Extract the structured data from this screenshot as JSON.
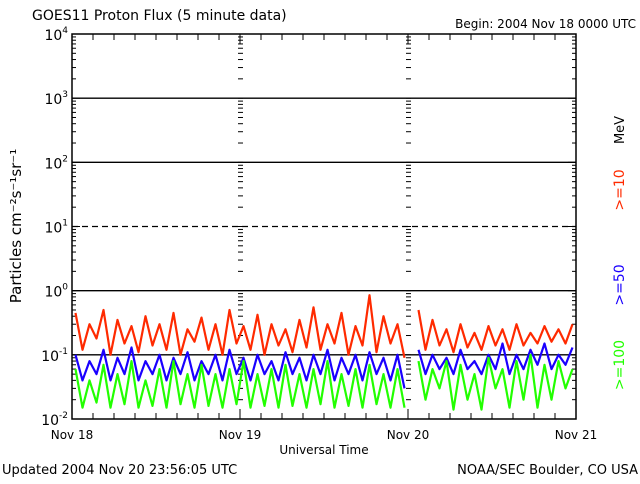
{
  "chart_data": {
    "type": "line",
    "title": "GOES11 Proton Flux (5 minute data)",
    "begin_label": "Begin: 2004 Nov 18 0000 UTC",
    "xlabel": "Universal Time",
    "ylabel": "Particles cm⁻²s⁻¹sr⁻¹",
    "yscale": "log",
    "ylim": [
      0.01,
      10000
    ],
    "y_ticks": [
      {
        "value": 10000,
        "base": "10",
        "exp": "4"
      },
      {
        "value": 1000,
        "base": "10",
        "exp": "3"
      },
      {
        "value": 100,
        "base": "10",
        "exp": "2"
      },
      {
        "value": 10,
        "base": "10",
        "exp": "1"
      },
      {
        "value": 1,
        "base": "10",
        "exp": "0"
      },
      {
        "value": 0.1,
        "base": "10",
        "exp": "-1"
      },
      {
        "value": 0.01,
        "base": "10",
        "exp": "-2"
      }
    ],
    "xlim_hours": [
      0,
      72
    ],
    "x_ticks": [
      {
        "hour": 0,
        "label": "Nov 18"
      },
      {
        "hour": 24,
        "label": "Nov 19"
      },
      {
        "hour": 48,
        "label": "Nov 20"
      },
      {
        "hour": 72,
        "label": "Nov 21"
      }
    ],
    "reference_lines": [
      {
        "value": 1000,
        "style": "solid"
      },
      {
        "value": 100,
        "style": "solid"
      },
      {
        "value": 10,
        "style": "dashed"
      },
      {
        "value": 1,
        "style": "solid"
      },
      {
        "value": 0.1,
        "style": "solid"
      }
    ],
    "unit_label": "MeV",
    "x_hours_step": 1,
    "series": [
      {
        "name": ">=10",
        "color": "#ff2a00",
        "values": [
          0.45,
          0.12,
          0.3,
          0.18,
          0.5,
          0.1,
          0.35,
          0.15,
          0.28,
          0.11,
          0.4,
          0.14,
          0.3,
          0.12,
          0.45,
          0.1,
          0.25,
          0.16,
          0.38,
          0.12,
          0.3,
          0.1,
          0.5,
          0.15,
          0.28,
          0.12,
          0.42,
          0.1,
          0.3,
          0.14,
          0.25,
          0.11,
          0.35,
          0.13,
          0.55,
          0.12,
          0.3,
          0.15,
          0.45,
          0.1,
          0.28,
          0.14,
          0.85,
          0.11,
          0.4,
          0.15,
          0.3,
          0.09,
          null,
          0.5,
          0.12,
          0.35,
          0.14,
          0.25,
          0.11,
          0.3,
          0.13,
          0.22,
          0.12,
          0.28,
          0.14,
          0.25,
          0.12,
          0.3,
          0.14,
          0.22,
          0.15,
          0.28,
          0.16,
          0.25,
          0.15,
          0.3
        ]
      },
      {
        "name": ">=50",
        "color": "#1a00ff",
        "values": [
          0.1,
          0.04,
          0.08,
          0.05,
          0.12,
          0.04,
          0.09,
          0.05,
          0.13,
          0.04,
          0.08,
          0.05,
          0.1,
          0.04,
          0.09,
          0.05,
          0.11,
          0.04,
          0.08,
          0.05,
          0.1,
          0.04,
          0.12,
          0.05,
          0.09,
          0.04,
          0.1,
          0.05,
          0.08,
          0.04,
          0.11,
          0.05,
          0.09,
          0.04,
          0.1,
          0.05,
          0.12,
          0.04,
          0.09,
          0.05,
          0.1,
          0.04,
          0.11,
          0.05,
          0.09,
          0.04,
          0.1,
          0.03,
          null,
          0.12,
          0.05,
          0.1,
          0.06,
          0.09,
          0.05,
          0.12,
          0.06,
          0.08,
          0.05,
          0.1,
          0.06,
          0.15,
          0.05,
          0.1,
          0.06,
          0.12,
          0.07,
          0.15,
          0.06,
          0.1,
          0.07,
          0.13
        ]
      },
      {
        "name": ">=100",
        "color": "#22ff00",
        "values": [
          0.06,
          0.015,
          0.04,
          0.018,
          0.07,
          0.015,
          0.05,
          0.017,
          0.08,
          0.015,
          0.04,
          0.016,
          0.06,
          0.015,
          0.08,
          0.017,
          0.05,
          0.015,
          0.07,
          0.016,
          0.05,
          0.015,
          0.06,
          0.017,
          0.08,
          0.015,
          0.05,
          0.016,
          0.06,
          0.015,
          0.07,
          0.016,
          0.05,
          0.015,
          0.06,
          0.017,
          0.08,
          0.015,
          0.05,
          0.016,
          0.06,
          0.015,
          0.07,
          0.017,
          0.05,
          0.015,
          0.06,
          0.015,
          null,
          0.08,
          0.02,
          0.06,
          0.03,
          0.08,
          0.014,
          0.07,
          0.02,
          0.05,
          0.014,
          0.09,
          0.03,
          0.06,
          0.015,
          0.08,
          0.02,
          0.1,
          0.015,
          0.07,
          0.02,
          0.08,
          0.03,
          0.06
        ]
      }
    ]
  },
  "footer": {
    "updated": "Updated 2004 Nov 20 23:56:05 UTC",
    "credit": "NOAA/SEC Boulder, CO USA"
  }
}
